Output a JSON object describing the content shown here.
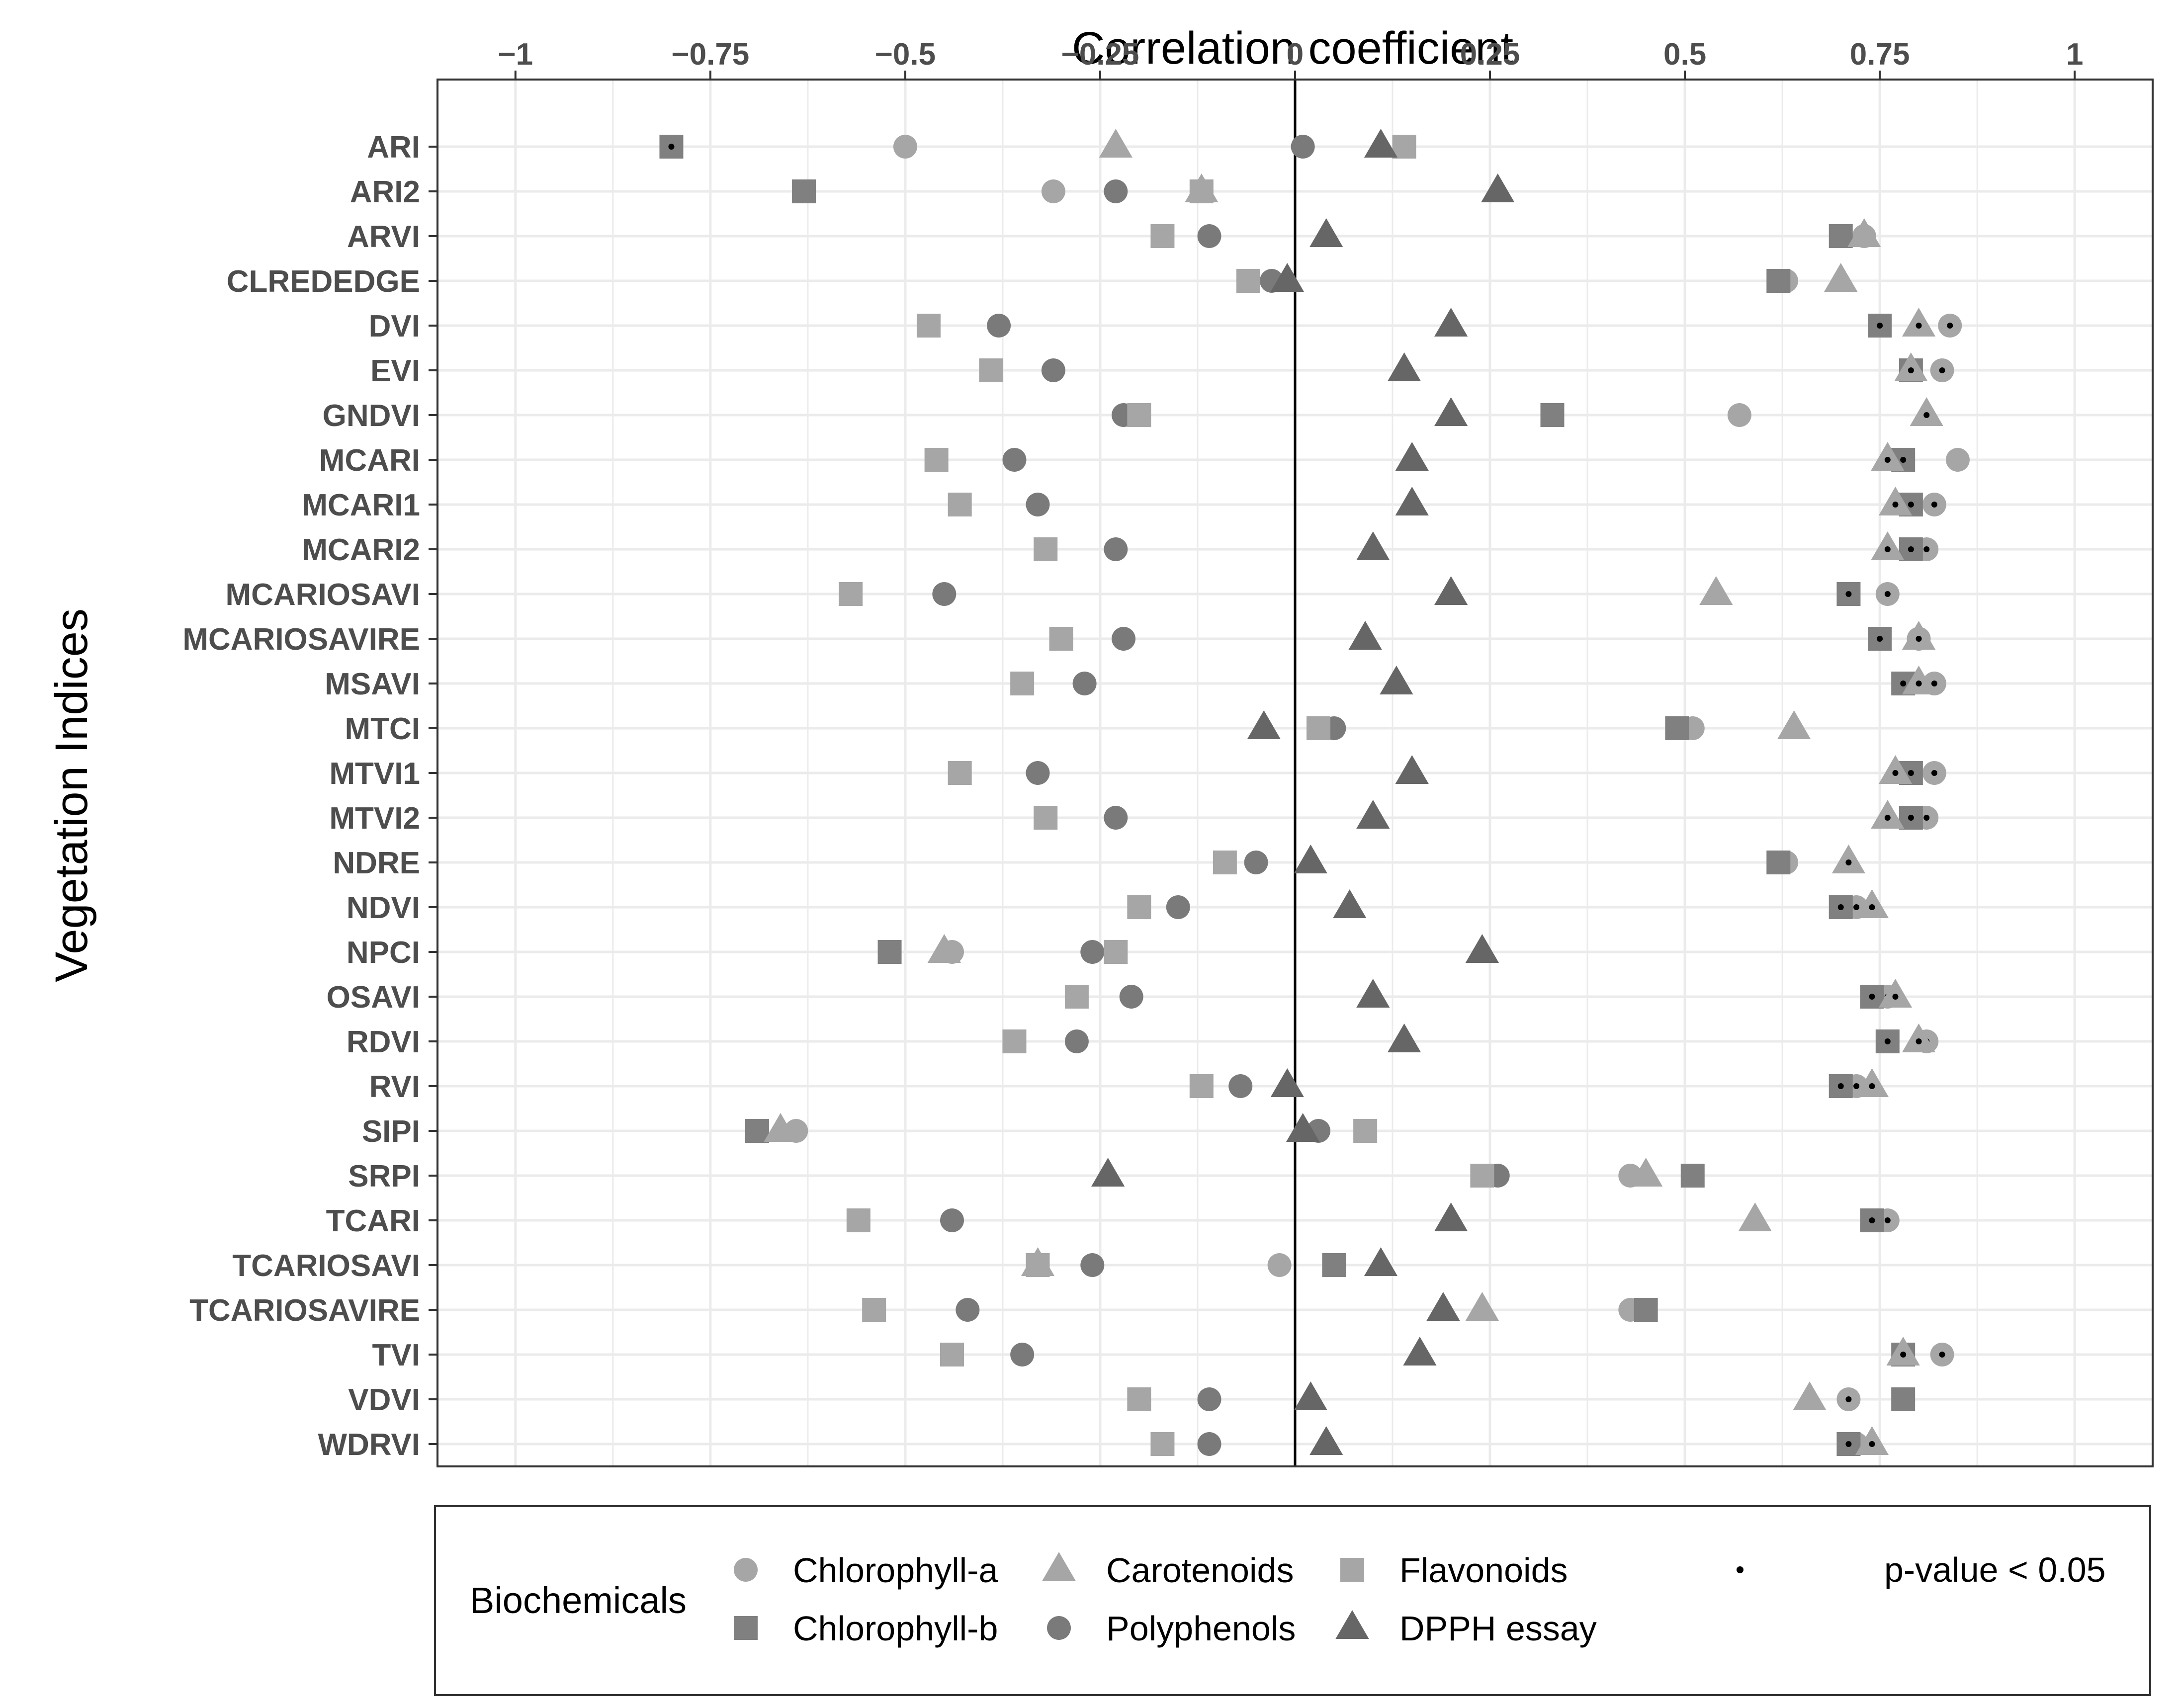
{
  "chart_data": {
    "type": "scatter",
    "title": "Correlation coefficient",
    "xlabel": "Correlation coefficient",
    "ylabel": "Vegetation Indices",
    "xlim": [
      -1.1,
      1.1
    ],
    "xticks": [
      -1,
      -0.75,
      -0.5,
      -0.25,
      0,
      0.25,
      0.5,
      0.75,
      1
    ],
    "xtick_labels": [
      "−1",
      "−0.75",
      "−0.5",
      "−0.25",
      "0",
      "0.25",
      "0.5",
      "0.75",
      "1"
    ],
    "categories": [
      "ARI",
      "ARI2",
      "ARVI",
      "CLREDEDGE",
      "DVI",
      "EVI",
      "GNDVI",
      "MCARI",
      "MCARI1",
      "MCARI2",
      "MCARIOSAVI",
      "MCARIOSAVIRE",
      "MSAVI",
      "MTCI",
      "MTVI1",
      "MTVI2",
      "NDRE",
      "NDVI",
      "NPCI",
      "OSAVI",
      "RDVI",
      "RVI",
      "SIPI",
      "SRPI",
      "TCARI",
      "TCARIOSAVI",
      "TCARIOSAVIRE",
      "TVI",
      "VDVI",
      "WDRVI"
    ],
    "series": [
      {
        "name": "Chlorophyll-a",
        "marker": "circle",
        "color": "#a6a6a6",
        "values": [
          -0.5,
          -0.31,
          0.73,
          0.63,
          0.84,
          0.83,
          0.57,
          0.85,
          0.82,
          0.81,
          0.76,
          0.8,
          0.82,
          0.51,
          0.82,
          0.81,
          0.63,
          0.72,
          -0.44,
          0.76,
          0.81,
          0.72,
          -0.64,
          0.43,
          0.76,
          -0.02,
          0.43,
          0.83,
          0.71,
          0.72
        ],
        "significant": [
          false,
          false,
          false,
          false,
          true,
          true,
          false,
          false,
          true,
          true,
          true,
          true,
          true,
          false,
          true,
          true,
          false,
          true,
          false,
          true,
          true,
          true,
          false,
          false,
          true,
          false,
          false,
          true,
          true,
          true
        ]
      },
      {
        "name": "Chlorophyll-b",
        "marker": "square",
        "color": "#808080",
        "values": [
          -0.8,
          -0.63,
          0.7,
          0.62,
          0.75,
          0.79,
          0.33,
          0.78,
          0.79,
          0.79,
          0.71,
          0.75,
          0.78,
          0.49,
          0.79,
          0.79,
          0.62,
          0.7,
          -0.52,
          0.74,
          0.76,
          0.7,
          -0.69,
          0.51,
          0.74,
          0.05,
          0.45,
          0.78,
          0.78,
          0.71
        ],
        "significant": [
          true,
          false,
          false,
          false,
          true,
          true,
          false,
          true,
          true,
          true,
          true,
          true,
          true,
          false,
          true,
          true,
          false,
          true,
          false,
          true,
          true,
          true,
          false,
          false,
          true,
          false,
          false,
          true,
          false,
          true
        ]
      },
      {
        "name": "Carotenoids",
        "marker": "triangle",
        "color": "#a6a6a6",
        "values": [
          -0.23,
          -0.12,
          0.73,
          0.7,
          0.8,
          0.79,
          0.81,
          0.76,
          0.77,
          0.76,
          0.54,
          0.8,
          0.8,
          0.64,
          0.77,
          0.76,
          0.71,
          0.74,
          -0.45,
          0.77,
          0.8,
          0.74,
          -0.66,
          0.45,
          0.59,
          -0.33,
          0.24,
          0.78,
          0.66,
          0.74
        ],
        "significant": [
          false,
          false,
          false,
          false,
          true,
          true,
          true,
          true,
          true,
          true,
          false,
          true,
          true,
          false,
          true,
          true,
          true,
          true,
          false,
          true,
          true,
          true,
          false,
          false,
          false,
          false,
          false,
          true,
          false,
          true
        ]
      },
      {
        "name": "Polyphenols",
        "marker": "circle",
        "color": "#7a7a7a",
        "values": [
          0.01,
          -0.23,
          -0.11,
          -0.03,
          -0.38,
          -0.31,
          -0.22,
          -0.36,
          -0.33,
          -0.23,
          -0.45,
          -0.22,
          -0.27,
          0.05,
          -0.33,
          -0.23,
          -0.05,
          -0.15,
          -0.26,
          -0.21,
          -0.28,
          -0.07,
          0.03,
          0.26,
          -0.44,
          -0.26,
          -0.42,
          -0.35,
          -0.11,
          -0.11
        ],
        "significant": [
          false,
          false,
          false,
          false,
          false,
          false,
          false,
          false,
          false,
          false,
          false,
          false,
          false,
          false,
          false,
          false,
          false,
          false,
          false,
          false,
          false,
          false,
          false,
          false,
          false,
          false,
          false,
          false,
          false,
          false
        ]
      },
      {
        "name": "Flavonoids",
        "marker": "square",
        "color": "#a6a6a6",
        "values": [
          0.14,
          -0.12,
          -0.17,
          -0.06,
          -0.47,
          -0.39,
          -0.2,
          -0.46,
          -0.43,
          -0.32,
          -0.57,
          -0.3,
          -0.35,
          0.03,
          -0.43,
          -0.32,
          -0.09,
          -0.2,
          -0.23,
          -0.28,
          -0.36,
          -0.12,
          0.09,
          0.24,
          -0.56,
          -0.33,
          -0.54,
          -0.44,
          -0.2,
          -0.17
        ],
        "significant": [
          false,
          false,
          false,
          false,
          false,
          false,
          false,
          false,
          false,
          false,
          false,
          false,
          false,
          false,
          false,
          false,
          false,
          false,
          false,
          false,
          false,
          false,
          false,
          false,
          false,
          false,
          false,
          false,
          false,
          false
        ]
      },
      {
        "name": "DPPH essay",
        "marker": "triangle",
        "color": "#666666",
        "values": [
          0.11,
          0.26,
          0.04,
          -0.01,
          0.2,
          0.14,
          0.2,
          0.15,
          0.15,
          0.1,
          0.2,
          0.09,
          0.13,
          -0.04,
          0.15,
          0.1,
          0.02,
          0.07,
          0.24,
          0.1,
          0.14,
          -0.01,
          0.01,
          -0.24,
          0.2,
          0.11,
          0.19,
          0.16,
          0.02,
          0.04
        ],
        "significant": [
          false,
          false,
          false,
          false,
          false,
          false,
          false,
          false,
          false,
          false,
          false,
          false,
          false,
          false,
          false,
          false,
          false,
          false,
          false,
          false,
          false,
          false,
          false,
          false,
          false,
          false,
          false,
          false,
          false,
          false
        ]
      }
    ],
    "legend": {
      "title": "Biochemicals",
      "position": "bottom",
      "items": [
        {
          "label": "Chlorophyll-a",
          "marker": "circle",
          "color": "#a6a6a6"
        },
        {
          "label": "Chlorophyll-b",
          "marker": "square",
          "color": "#808080"
        },
        {
          "label": "Carotenoids",
          "marker": "triangle",
          "color": "#a6a6a6"
        },
        {
          "label": "Polyphenols",
          "marker": "circle",
          "color": "#7a7a7a"
        },
        {
          "label": "Flavonoids",
          "marker": "square",
          "color": "#a6a6a6"
        },
        {
          "label": "DPPH essay",
          "marker": "triangle",
          "color": "#666666"
        }
      ],
      "significance_label": "p-value < 0.05"
    },
    "grid": true
  }
}
